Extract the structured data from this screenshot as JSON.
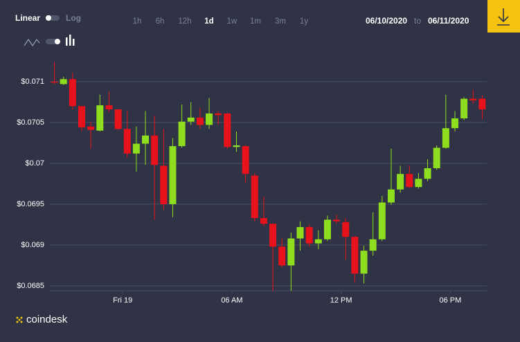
{
  "controls": {
    "scale_options": [
      "Linear",
      "Log"
    ],
    "ranges": [
      "1h",
      "6h",
      "12h",
      "1d",
      "1w",
      "1m",
      "3m",
      "1y"
    ],
    "date_from": "06/10/2020",
    "date_separator": "to",
    "date_to": "06/11/2020"
  },
  "brand": "coindesk",
  "chart_data": {
    "type": "candlestick",
    "categories": [
      null,
      null,
      null,
      null,
      null,
      null,
      null,
      null,
      null,
      null,
      null,
      null,
      null,
      null,
      null,
      null,
      null,
      null,
      null,
      null,
      null,
      null,
      null,
      null,
      null,
      null,
      null,
      null,
      null,
      null,
      null,
      null,
      null,
      null,
      null,
      null,
      null,
      null,
      null,
      null,
      null,
      null,
      null,
      null,
      null,
      null,
      null,
      null
    ],
    "open": [
      0.071,
      0.07097,
      0.07103,
      0.0707,
      0.07045,
      0.0704,
      0.07071,
      0.07066,
      0.07042,
      0.07012,
      0.07024,
      0.07034,
      0.06997,
      0.0695,
      0.07021,
      0.07051,
      0.07056,
      0.07047,
      0.07061,
      0.07061,
      0.0702,
      0.07021,
      0.06985,
      0.06933,
      0.06926,
      0.06898,
      0.06875,
      0.06908,
      0.06922,
      0.06902,
      0.06907,
      0.06931,
      0.06928,
      0.0691,
      0.06865,
      0.06893,
      0.06907,
      0.06952,
      0.06968,
      0.06987,
      0.06971,
      0.06981,
      0.06994,
      0.07019,
      0.07043,
      0.07055,
      0.07079,
      0.07079
    ],
    "high": [
      0.07124,
      0.07106,
      0.07111,
      0.0707,
      0.07051,
      0.07084,
      0.07088,
      0.07066,
      0.07064,
      0.07045,
      0.07064,
      0.07058,
      0.07042,
      0.07031,
      0.07072,
      0.07075,
      0.07068,
      0.0708,
      0.07064,
      0.07062,
      0.07039,
      0.07022,
      0.06988,
      0.06959,
      0.06926,
      0.06908,
      0.06915,
      0.06929,
      0.06925,
      0.06918,
      0.06936,
      0.06937,
      0.06933,
      0.06911,
      0.06899,
      0.0694,
      0.0696,
      0.07018,
      0.06997,
      0.06997,
      0.06988,
      0.07005,
      0.07022,
      0.07084,
      0.07064,
      0.07081,
      0.0709,
      0.07083
    ],
    "low": [
      0.07097,
      0.07096,
      0.07066,
      0.07039,
      0.07018,
      0.07039,
      0.07063,
      0.07041,
      0.07007,
      0.0699,
      0.06998,
      0.06931,
      0.06943,
      0.06934,
      0.07019,
      0.07047,
      0.07042,
      0.07042,
      0.07047,
      0.07018,
      0.07014,
      0.06976,
      0.06929,
      0.06923,
      0.06844,
      0.06873,
      0.06844,
      0.06893,
      0.06898,
      0.06895,
      0.06905,
      0.06926,
      0.06882,
      0.06854,
      0.06853,
      0.06887,
      0.06905,
      0.06949,
      0.06964,
      0.0697,
      0.06969,
      0.06978,
      0.06992,
      0.07018,
      0.07039,
      0.07053,
      0.07073,
      0.07054
    ],
    "close": [
      0.07099,
      0.07103,
      0.0707,
      0.07044,
      0.07041,
      0.07071,
      0.07066,
      0.07042,
      0.07012,
      0.07024,
      0.07034,
      0.06998,
      0.0695,
      0.07021,
      0.07051,
      0.07056,
      0.07047,
      0.07061,
      0.07059,
      0.0702,
      0.07022,
      0.06987,
      0.06933,
      0.06926,
      0.06898,
      0.06875,
      0.06908,
      0.06922,
      0.06902,
      0.06907,
      0.06931,
      0.06929,
      0.0691,
      0.06865,
      0.06893,
      0.06907,
      0.06952,
      0.06968,
      0.06987,
      0.06971,
      0.06981,
      0.06994,
      0.07019,
      0.07043,
      0.07055,
      0.07079,
      0.07077,
      0.07066
    ],
    "up_color": "#8fdd1f",
    "down_color": "#e8121c",
    "ylim": [
      0.06844,
      0.07127
    ],
    "yticks": [
      {
        "value": 0.0685,
        "label": "$0.0685"
      },
      {
        "value": 0.069,
        "label": "$0.069"
      },
      {
        "value": 0.0695,
        "label": "$0.0695"
      },
      {
        "value": 0.07,
        "label": "$0.07"
      },
      {
        "value": 0.0705,
        "label": "$0.0705"
      },
      {
        "value": 0.071,
        "label": "$0.071"
      }
    ],
    "xlim": [
      -0.5,
      47.5
    ],
    "xticks": [
      {
        "value": 7.5,
        "label": "Fri 19"
      },
      {
        "value": 19.5,
        "label": "06 AM"
      },
      {
        "value": 31.5,
        "label": "12 PM"
      },
      {
        "value": 43.5,
        "label": "06 PM"
      }
    ],
    "grid": true
  }
}
